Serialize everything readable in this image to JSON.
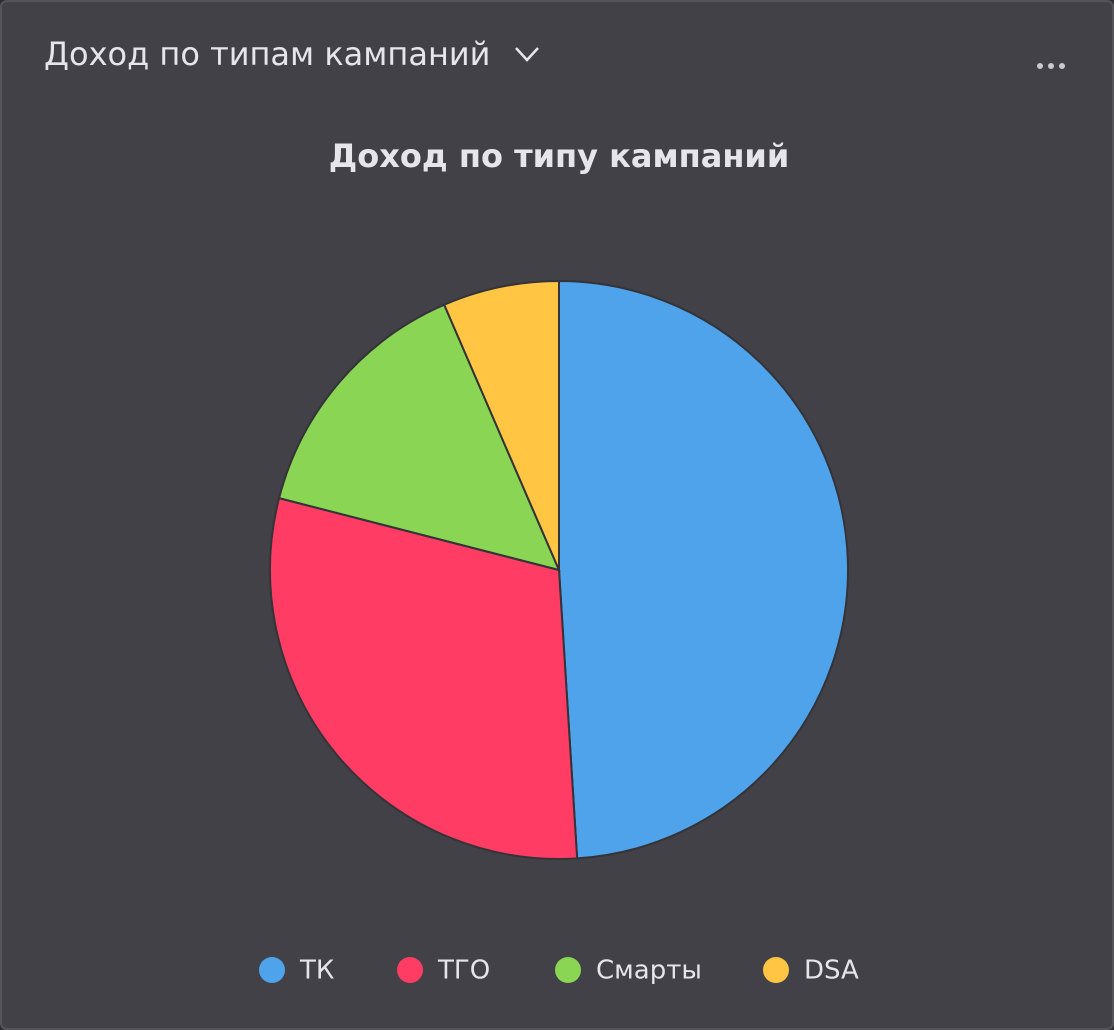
{
  "header": {
    "title": "Доход по типам кампаний"
  },
  "chart_data": {
    "type": "pie",
    "title": "Доход по типу кампаний",
    "categories": [
      "ТК",
      "ТГО",
      "Смарты",
      "DSA"
    ],
    "values": [
      49,
      30,
      14.5,
      6.5
    ],
    "colors": [
      "#4fa3eb",
      "#ff3d64",
      "#8ad554",
      "#ffc543"
    ],
    "legend": "bottom"
  }
}
